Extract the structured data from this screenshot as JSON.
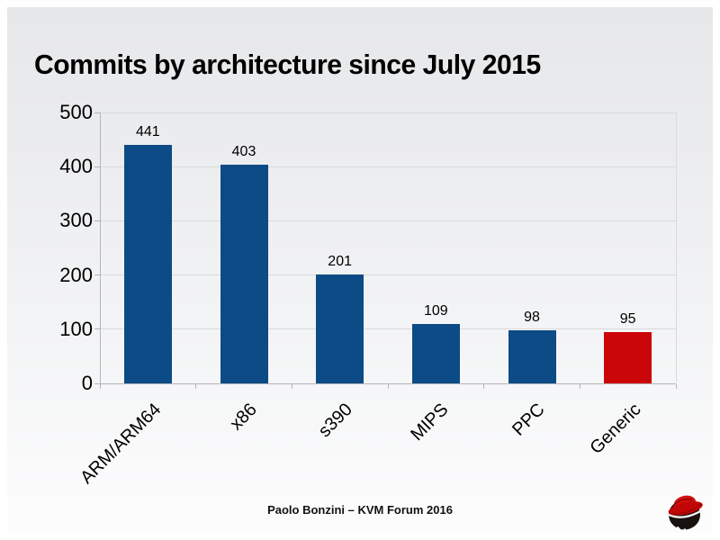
{
  "header": {
    "title": "Commits by architecture since July 2015"
  },
  "chart_data": {
    "type": "bar",
    "title": "Commits by architecture since July 2015",
    "categories": [
      "ARM/ARM64",
      "x86",
      "s390",
      "MIPS",
      "PPC",
      "Generic"
    ],
    "values": [
      441,
      403,
      201,
      109,
      98,
      95
    ],
    "bar_colors": [
      "#0c4b85",
      "#0c4b85",
      "#0c4b85",
      "#0c4b85",
      "#0c4b85",
      "#cb0609"
    ],
    "highlighted_category": "Generic",
    "xlabel": "",
    "ylabel": "",
    "ylim": [
      0,
      500
    ],
    "y_ticks": [
      0,
      100,
      200,
      300,
      400,
      500
    ],
    "grid": true,
    "legend": false,
    "value_labels": true
  },
  "footer": {
    "text": "Paolo Bonzini – KVM Forum 2016",
    "logo": "red-hat-shadowman"
  },
  "colors": {
    "bar_blue": "#0c4b85",
    "bar_red": "#cb0609",
    "grid": "#d9dadc",
    "axis": "#b3b5b8",
    "redhat_red": "#cc0000"
  }
}
